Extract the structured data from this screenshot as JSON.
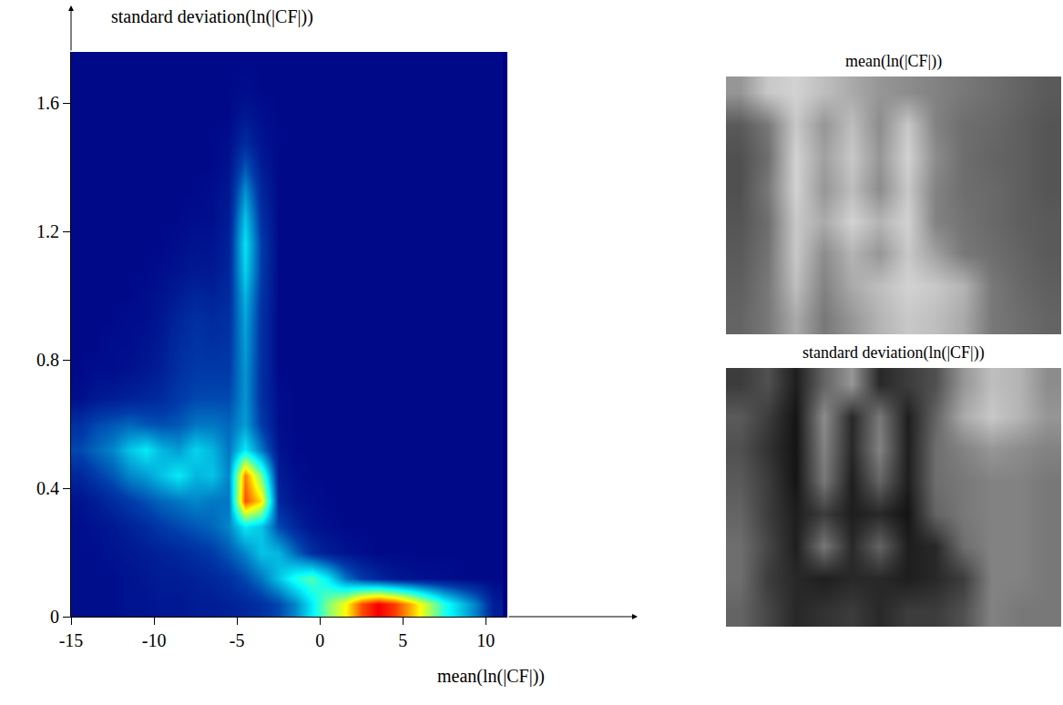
{
  "chart_data": [
    {
      "type": "heatmap",
      "xlabel": "mean(ln(|CF|))",
      "ylabel": "standard deviation(ln(|CF|))",
      "color": "Jet",
      "xlim": [
        -15,
        11.3
      ],
      "ylim": [
        0,
        1.76
      ],
      "xticks": [
        -15,
        -10,
        -5,
        0,
        5,
        10
      ],
      "yticks": [
        0,
        0.4,
        0.8,
        1.2,
        1.6
      ],
      "zlim": [
        0,
        100
      ],
      "x": [
        -14.5,
        -13.5,
        -12.5,
        -11.5,
        -10.5,
        -9.5,
        -8.5,
        -7.5,
        -6.5,
        -5.5,
        -4.5,
        -3.5,
        -2.5,
        -1.5,
        -0.5,
        0.5,
        1.5,
        2.5,
        3.5,
        4.5,
        5.5,
        6.5,
        7.5,
        8.5,
        9.5,
        10.5
      ],
      "y": [
        0.04,
        0.12,
        0.2,
        0.28,
        0.36,
        0.44,
        0.52,
        0.6,
        0.68,
        0.76,
        0.84,
        0.92,
        1.0,
        1.08,
        1.16,
        1.24,
        1.32,
        1.4,
        1.48,
        1.56,
        1.64,
        1.72
      ],
      "z": [
        [
          3,
          3,
          3,
          4,
          4,
          5,
          5,
          6,
          6,
          7,
          8,
          10,
          14,
          22,
          35,
          50,
          62,
          80,
          88,
          82,
          70,
          55,
          40,
          30,
          20,
          6
        ],
        [
          3,
          3,
          3,
          4,
          5,
          6,
          6,
          7,
          8,
          10,
          14,
          20,
          30,
          40,
          45,
          35,
          20,
          12,
          8,
          5,
          4,
          3,
          3,
          2,
          2,
          2
        ],
        [
          3,
          3,
          4,
          5,
          6,
          7,
          8,
          10,
          12,
          16,
          22,
          30,
          28,
          18,
          10,
          6,
          4,
          3,
          2,
          2,
          2,
          2,
          2,
          2,
          2,
          2
        ],
        [
          3,
          4,
          5,
          7,
          9,
          12,
          14,
          16,
          18,
          22,
          35,
          30,
          14,
          8,
          4,
          3,
          2,
          2,
          2,
          2,
          2,
          2,
          2,
          2,
          2,
          2
        ],
        [
          4,
          6,
          9,
          12,
          15,
          18,
          20,
          22,
          20,
          20,
          80,
          65,
          8,
          4,
          3,
          2,
          2,
          2,
          2,
          2,
          2,
          2,
          2,
          2,
          2,
          2
        ],
        [
          8,
          12,
          16,
          22,
          25,
          30,
          35,
          28,
          30,
          22,
          75,
          48,
          6,
          3,
          2,
          2,
          2,
          2,
          2,
          2,
          2,
          2,
          2,
          2,
          2,
          2
        ],
        [
          14,
          18,
          22,
          30,
          35,
          28,
          25,
          32,
          28,
          20,
          35,
          20,
          4,
          2,
          2,
          2,
          2,
          2,
          2,
          2,
          2,
          2,
          2,
          2,
          2,
          2
        ],
        [
          10,
          14,
          16,
          18,
          16,
          15,
          16,
          20,
          20,
          18,
          25,
          12,
          3,
          2,
          2,
          2,
          2,
          2,
          2,
          2,
          2,
          2,
          2,
          2,
          2,
          2
        ],
        [
          3,
          5,
          6,
          7,
          8,
          9,
          12,
          14,
          14,
          14,
          24,
          10,
          3,
          2,
          2,
          2,
          2,
          2,
          2,
          2,
          2,
          2,
          2,
          2,
          2,
          2
        ],
        [
          2,
          3,
          3,
          4,
          5,
          7,
          10,
          12,
          12,
          12,
          24,
          10,
          2,
          2,
          2,
          2,
          2,
          2,
          2,
          2,
          2,
          2,
          2,
          2,
          2,
          2
        ],
        [
          2,
          2,
          3,
          3,
          4,
          6,
          9,
          11,
          10,
          11,
          25,
          10,
          2,
          2,
          2,
          2,
          2,
          2,
          2,
          2,
          2,
          2,
          2,
          2,
          2,
          2
        ],
        [
          2,
          2,
          2,
          3,
          3,
          5,
          8,
          10,
          9,
          10,
          26,
          10,
          2,
          2,
          2,
          2,
          2,
          2,
          2,
          2,
          2,
          2,
          2,
          2,
          2,
          2
        ],
        [
          2,
          2,
          2,
          2,
          3,
          4,
          6,
          8,
          7,
          9,
          28,
          11,
          2,
          2,
          2,
          2,
          2,
          2,
          2,
          2,
          2,
          2,
          2,
          2,
          2,
          2
        ],
        [
          2,
          2,
          2,
          2,
          2,
          3,
          4,
          5,
          5,
          8,
          32,
          12,
          2,
          2,
          2,
          2,
          2,
          2,
          2,
          2,
          2,
          2,
          2,
          2,
          2,
          2
        ],
        [
          2,
          2,
          2,
          2,
          2,
          2,
          3,
          4,
          4,
          7,
          34,
          12,
          2,
          2,
          2,
          2,
          2,
          2,
          2,
          2,
          2,
          2,
          2,
          2,
          2,
          2
        ],
        [
          2,
          2,
          2,
          2,
          2,
          2,
          2,
          3,
          3,
          6,
          30,
          10,
          2,
          2,
          2,
          2,
          2,
          2,
          2,
          2,
          2,
          2,
          2,
          2,
          2,
          2
        ],
        [
          2,
          2,
          2,
          2,
          2,
          2,
          2,
          2,
          3,
          5,
          24,
          8,
          2,
          2,
          2,
          2,
          2,
          2,
          2,
          2,
          2,
          2,
          2,
          2,
          2,
          2
        ],
        [
          2,
          2,
          2,
          2,
          2,
          2,
          2,
          2,
          2,
          4,
          16,
          6,
          2,
          2,
          2,
          2,
          2,
          2,
          2,
          2,
          2,
          2,
          2,
          2,
          2,
          2
        ],
        [
          2,
          2,
          2,
          2,
          2,
          2,
          2,
          2,
          2,
          3,
          9,
          4,
          2,
          2,
          2,
          2,
          2,
          2,
          2,
          2,
          2,
          2,
          2,
          2,
          2,
          2
        ],
        [
          2,
          2,
          2,
          2,
          2,
          2,
          2,
          2,
          2,
          2,
          5,
          3,
          2,
          2,
          2,
          2,
          2,
          2,
          2,
          2,
          2,
          2,
          2,
          2,
          2,
          2
        ],
        [
          2,
          2,
          2,
          2,
          2,
          2,
          2,
          2,
          2,
          2,
          3,
          2,
          2,
          2,
          2,
          2,
          2,
          2,
          2,
          2,
          2,
          2,
          2,
          2,
          2,
          2
        ],
        [
          2,
          2,
          2,
          2,
          2,
          2,
          2,
          2,
          2,
          2,
          2,
          2,
          2,
          2,
          2,
          2,
          2,
          2,
          2,
          2,
          2,
          2,
          2,
          2,
          2,
          2
        ]
      ]
    },
    {
      "type": "heatmap",
      "title": "mean(ln(|CF|))",
      "color": "Greys",
      "tick_labels": false,
      "zlim": [
        0,
        255
      ],
      "z": [
        [
          150,
          200,
          210,
          190,
          170,
          150,
          140,
          130,
          120,
          110,
          100,
          90
        ],
        [
          90,
          120,
          200,
          150,
          190,
          140,
          200,
          130,
          110,
          105,
          95,
          85
        ],
        [
          80,
          110,
          210,
          160,
          200,
          150,
          210,
          140,
          110,
          100,
          95,
          85
        ],
        [
          80,
          120,
          210,
          150,
          190,
          140,
          200,
          130,
          110,
          105,
          95,
          85
        ],
        [
          85,
          110,
          200,
          170,
          210,
          180,
          210,
          130,
          115,
          105,
          95,
          90
        ],
        [
          90,
          115,
          200,
          140,
          180,
          150,
          200,
          160,
          120,
          110,
          100,
          90
        ],
        [
          95,
          120,
          190,
          130,
          170,
          190,
          210,
          200,
          180,
          120,
          105,
          95
        ],
        [
          100,
          120,
          170,
          120,
          150,
          180,
          200,
          190,
          170,
          120,
          110,
          100
        ]
      ]
    },
    {
      "type": "heatmap",
      "title": "standard deviation(ln(|CF|))",
      "color": "Greys",
      "tick_labels": false,
      "zlim": [
        0,
        255
      ],
      "z": [
        [
          60,
          80,
          30,
          100,
          150,
          40,
          60,
          80,
          150,
          190,
          180,
          140
        ],
        [
          90,
          60,
          20,
          140,
          40,
          120,
          30,
          100,
          170,
          200,
          180,
          150
        ],
        [
          80,
          50,
          20,
          130,
          40,
          130,
          30,
          110,
          130,
          150,
          140,
          130
        ],
        [
          90,
          60,
          20,
          120,
          30,
          100,
          30,
          110,
          120,
          130,
          130,
          120
        ],
        [
          100,
          60,
          30,
          60,
          30,
          40,
          20,
          100,
          120,
          130,
          130,
          120
        ],
        [
          110,
          70,
          30,
          120,
          40,
          100,
          30,
          40,
          110,
          130,
          130,
          120
        ],
        [
          110,
          60,
          40,
          30,
          40,
          40,
          30,
          40,
          60,
          130,
          130,
          120
        ],
        [
          100,
          70,
          40,
          50,
          60,
          40,
          60,
          60,
          80,
          130,
          120,
          120
        ]
      ]
    }
  ]
}
